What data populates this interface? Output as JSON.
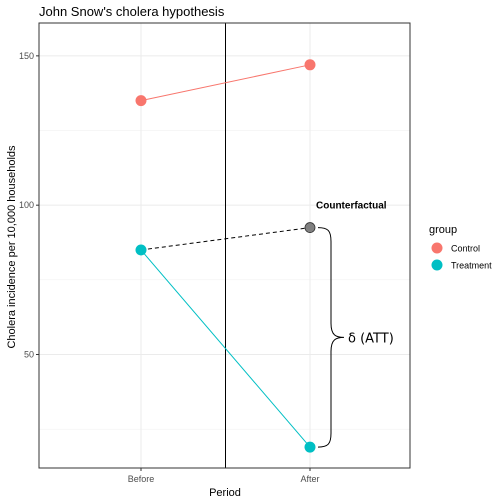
{
  "chart_data": {
    "type": "line",
    "title": "John Snow's cholera hypothesis",
    "xlabel": "Period",
    "ylabel": "Cholera incidence per 10,000 households",
    "categories": [
      "Before",
      "After"
    ],
    "ylim": [
      12,
      161
    ],
    "yticks": [
      50,
      100,
      150
    ],
    "ytick_labels": [
      "50",
      "100",
      "150"
    ],
    "grid": true,
    "vertical_line_between_periods": true,
    "legend": {
      "title": "group",
      "position": "right",
      "entries": [
        "Control",
        "Treatment"
      ]
    },
    "series": [
      {
        "name": "Control",
        "color": "#F8766D",
        "values": [
          135,
          147
        ]
      },
      {
        "name": "Treatment",
        "color": "#00BFC4",
        "values": [
          85,
          19
        ]
      }
    ],
    "counterfactual": {
      "label": "Counterfactual",
      "color": "#808080",
      "values": [
        85,
        92.5
      ],
      "linestyle": "dashed"
    },
    "annotation": {
      "label": "δ (ATT)",
      "from": 92.5,
      "to": 19
    }
  }
}
